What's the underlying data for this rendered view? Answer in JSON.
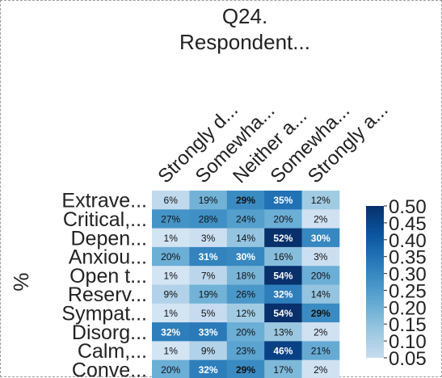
{
  "chart_data": {
    "type": "heatmap",
    "title": "Q24.\nRespondent...",
    "ylabel": "%",
    "columns": [
      "Strongly d...",
      "Somewha...",
      "Neither a...",
      "Somewha...",
      "Strongly a..."
    ],
    "rows": [
      "Extrave...",
      "Critical,...",
      "Depen...",
      "Anxiou...",
      "Open t...",
      "Reserv...",
      "Sympat...",
      "Disorg...",
      "Calm,...",
      "Conve..."
    ],
    "values": [
      [
        0.06,
        0.19,
        0.29,
        0.35,
        0.12
      ],
      [
        0.27,
        0.28,
        0.24,
        0.2,
        0.02
      ],
      [
        0.01,
        0.03,
        0.14,
        0.52,
        0.3
      ],
      [
        0.2,
        0.31,
        0.3,
        0.16,
        0.03
      ],
      [
        0.01,
        0.07,
        0.18,
        0.54,
        0.2
      ],
      [
        0.09,
        0.19,
        0.26,
        0.32,
        0.14
      ],
      [
        0.01,
        0.05,
        0.12,
        0.54,
        0.29
      ],
      [
        0.32,
        0.33,
        0.2,
        0.13,
        0.02
      ],
      [
        0.01,
        0.09,
        0.23,
        0.46,
        0.21
      ],
      [
        0.2,
        0.32,
        0.29,
        0.17,
        0.02
      ]
    ],
    "cell_labels": [
      [
        "6%",
        "19%",
        "29%",
        "35%",
        "12%"
      ],
      [
        "27%",
        "28%",
        "24%",
        "20%",
        "2%"
      ],
      [
        "1%",
        "3%",
        "14%",
        "52%",
        "30%"
      ],
      [
        "20%",
        "31%",
        "30%",
        "16%",
        "3%"
      ],
      [
        "1%",
        "7%",
        "18%",
        "54%",
        "20%"
      ],
      [
        "9%",
        "19%",
        "26%",
        "32%",
        "14%"
      ],
      [
        "1%",
        "5%",
        "12%",
        "54%",
        "29%"
      ],
      [
        "32%",
        "33%",
        "20%",
        "13%",
        "2%"
      ],
      [
        "1%",
        "9%",
        "23%",
        "46%",
        "21%"
      ],
      [
        "20%",
        "32%",
        "29%",
        "17%",
        "2%"
      ]
    ],
    "colorbar": {
      "min": 0.05,
      "max": 0.5,
      "ticks": [
        "0.05",
        "0.10",
        "0.15",
        "0.20",
        "0.25",
        "0.30",
        "0.35",
        "0.40",
        "0.45",
        "0.50"
      ],
      "colormap": "Blues",
      "low_color": "#c6dbef",
      "high_color": "#08306b"
    },
    "grid": false
  }
}
